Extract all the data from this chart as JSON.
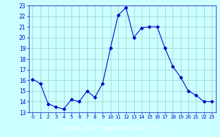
{
  "x": [
    0,
    1,
    2,
    3,
    4,
    5,
    6,
    7,
    8,
    9,
    10,
    11,
    12,
    13,
    14,
    15,
    16,
    17,
    18,
    19,
    20,
    21,
    22,
    23
  ],
  "y": [
    16.1,
    15.7,
    13.8,
    13.5,
    13.3,
    14.2,
    14.0,
    15.0,
    14.4,
    15.7,
    19.0,
    22.1,
    22.8,
    20.0,
    20.9,
    21.0,
    21.0,
    19.0,
    17.3,
    16.3,
    15.0,
    14.6,
    14.0,
    14.0
  ],
  "ylim": [
    13,
    23
  ],
  "yticks": [
    13,
    14,
    15,
    16,
    17,
    18,
    19,
    20,
    21,
    22,
    23
  ],
  "xticks": [
    0,
    1,
    2,
    3,
    4,
    5,
    6,
    7,
    8,
    9,
    10,
    11,
    12,
    13,
    14,
    15,
    16,
    17,
    18,
    19,
    20,
    21,
    22,
    23
  ],
  "xlabel": "Graphe des températures (°c)",
  "line_color": "#0000cc",
  "marker": "D",
  "marker_size": 2.5,
  "bg_color": "#ccffff",
  "grid_color": "#99cccc",
  "tick_color": "#0000cc",
  "bottom_bar_color": "#2222aa",
  "bottom_bar_text_color": "#ffffff",
  "figsize": [
    3.2,
    2.0
  ],
  "dpi": 100
}
